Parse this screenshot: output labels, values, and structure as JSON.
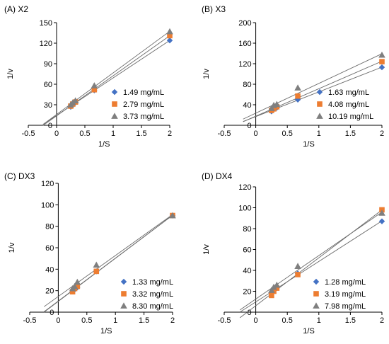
{
  "chart_data": [
    {
      "type": "scatter",
      "title": "(A) X2",
      "xlabel": "1/S",
      "ylabel": "1/v",
      "xlim": [
        -0.5,
        2
      ],
      "ylim": [
        0,
        150
      ],
      "xticks": [
        -0.5,
        0,
        0.5,
        1,
        1.5,
        2
      ],
      "xtick_labels": [
        "-0.5",
        "0",
        "0.5",
        "1",
        "1.5",
        "2"
      ],
      "yticks": [
        0,
        30,
        60,
        90,
        120,
        150
      ],
      "ytick_labels": [
        "0",
        "30",
        "60",
        "90",
        "120",
        "150"
      ],
      "legend_position": "bottom-right",
      "series": [
        {
          "name": "1.49 mg/mL",
          "marker": "diamond",
          "color": "#4472c4",
          "x": [
            0.25,
            0.2857,
            0.3333,
            0.6667,
            2
          ],
          "y": [
            27,
            30,
            34,
            51,
            124
          ],
          "fit": [
            -0.24,
            2
          ]
        },
        {
          "name": "2.79 mg/mL",
          "marker": "square",
          "color": "#ed7d31",
          "x": [
            0.25,
            0.2857,
            0.3333,
            0.6667,
            2
          ],
          "y": [
            28,
            31,
            34,
            52,
            131
          ],
          "fit": [
            -0.24,
            2
          ]
        },
        {
          "name": "3.73 mg/mL",
          "marker": "triangle",
          "color": "#7f7f7f",
          "x": [
            0.25,
            0.2857,
            0.3333,
            0.6667,
            2
          ],
          "y": [
            30,
            33,
            36,
            58,
            137
          ],
          "fit": [
            -0.24,
            2
          ]
        }
      ]
    },
    {
      "type": "scatter",
      "title": "(B) X3",
      "xlabel": "1/S",
      "ylabel": "1/v",
      "xlim": [
        -0.5,
        2
      ],
      "ylim": [
        0,
        200
      ],
      "xticks": [
        -0.5,
        0,
        0.5,
        1,
        1.5,
        2
      ],
      "xtick_labels": [
        "-0.5",
        "0",
        "0.5",
        "1",
        "1.5",
        "2"
      ],
      "yticks": [
        0,
        40,
        80,
        120,
        160,
        200
      ],
      "ytick_labels": [
        "0",
        "40",
        "80",
        "120",
        "160",
        "200"
      ],
      "legend_position": "bottom-right",
      "series": [
        {
          "name": "1.63 mg/mL",
          "marker": "diamond",
          "color": "#4472c4",
          "x": [
            0.25,
            0.2857,
            0.3333,
            0.6667,
            2
          ],
          "y": [
            27,
            31,
            34,
            50,
            113
          ],
          "fit": [
            -0.2,
            2
          ]
        },
        {
          "name": "4.08 mg/mL",
          "marker": "square",
          "color": "#ed7d31",
          "x": [
            0.25,
            0.2857,
            0.3333,
            0.6667,
            2
          ],
          "y": [
            29,
            32,
            36,
            57,
            124
          ],
          "fit": [
            -0.2,
            2
          ]
        },
        {
          "name": "10.19 mg/mL",
          "marker": "triangle",
          "color": "#7f7f7f",
          "x": [
            0.25,
            0.2857,
            0.3333,
            0.6667,
            2
          ],
          "y": [
            33,
            39,
            41,
            73,
            137
          ],
          "fit": [
            -0.2,
            2
          ]
        }
      ]
    },
    {
      "type": "scatter",
      "title": "(C) DX3",
      "xlabel": "1/S",
      "ylabel": "1/v",
      "xlim": [
        -0.5,
        2
      ],
      "ylim": [
        0,
        120
      ],
      "xticks": [
        -0.5,
        0,
        0.5,
        1,
        1.5,
        2
      ],
      "xtick_labels": [
        "-0.5",
        "0",
        "0.5",
        "1",
        "1.5",
        "2"
      ],
      "yticks": [
        0,
        20,
        40,
        60,
        80,
        100,
        120
      ],
      "ytick_labels": [
        "0",
        "20",
        "40",
        "60",
        "80",
        "100",
        "120"
      ],
      "legend_position": "bottom-right",
      "series": [
        {
          "name": "1.33 mg/mL",
          "marker": "diamond",
          "color": "#4472c4",
          "x": [
            0.25,
            0.2857,
            0.3333,
            0.6667,
            2
          ],
          "y": [
            20,
            21,
            23,
            38,
            90
          ],
          "fit": [
            -0.25,
            2
          ]
        },
        {
          "name": "3.32 mg/mL",
          "marker": "square",
          "color": "#ed7d31",
          "x": [
            0.25,
            0.2857,
            0.3333,
            0.6667,
            2
          ],
          "y": [
            19,
            22,
            24,
            38,
            90
          ],
          "fit": [
            -0.25,
            2
          ]
        },
        {
          "name": "8.30 mg/mL",
          "marker": "triangle",
          "color": "#7f7f7f",
          "x": [
            0.25,
            0.2857,
            0.3333,
            0.6667,
            2
          ],
          "y": [
            22,
            24,
            28,
            44,
            90
          ],
          "fit": [
            -0.25,
            2
          ]
        }
      ]
    },
    {
      "type": "scatter",
      "title": "(D) DX4",
      "xlabel": "1/S",
      "ylabel": "1/v",
      "xlim": [
        -0.5,
        2
      ],
      "ylim": [
        0,
        120
      ],
      "xticks": [
        -0.5,
        0,
        0.5,
        1,
        1.5,
        2
      ],
      "xtick_labels": [
        "-0.5",
        "0",
        "0.5",
        "1",
        "1.5",
        "2"
      ],
      "yticks": [
        0,
        20,
        40,
        60,
        80,
        100,
        120
      ],
      "ytick_labels": [
        "0",
        "20",
        "40",
        "60",
        "80",
        "100",
        "120"
      ],
      "legend_position": "bottom-right",
      "series": [
        {
          "name": "1.28 mg/mL",
          "marker": "diamond",
          "color": "#4472c4",
          "x": [
            0.25,
            0.2857,
            0.3333,
            0.6667,
            2
          ],
          "y": [
            18,
            21,
            23,
            37,
            87
          ],
          "fit": [
            -0.25,
            2
          ]
        },
        {
          "name": "3.19 mg/mL",
          "marker": "square",
          "color": "#ed7d31",
          "x": [
            0.25,
            0.2857,
            0.3333,
            0.6667,
            2
          ],
          "y": [
            16,
            20,
            23,
            36,
            98
          ],
          "fit": [
            -0.25,
            2
          ]
        },
        {
          "name": "7.98 mg/mL",
          "marker": "triangle",
          "color": "#7f7f7f",
          "x": [
            0.25,
            0.2857,
            0.3333,
            0.6667,
            2
          ],
          "y": [
            21,
            24,
            26,
            44,
            95
          ],
          "fit": [
            -0.25,
            2
          ]
        }
      ]
    }
  ]
}
